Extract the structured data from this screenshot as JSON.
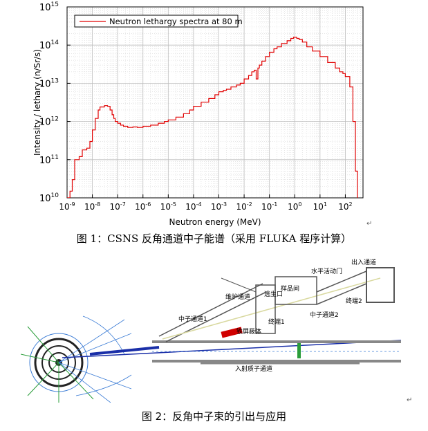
{
  "figure1": {
    "caption": "图 1：CSNS 反角通道中子能谱（采用 FLUKA 程序计算）",
    "chart_data": {
      "type": "line",
      "title": "",
      "xlabel": "Neutron energy (MeV)",
      "ylabel": "Intensity / lethary (n/Sr/s)",
      "xscale": "log",
      "yscale": "log",
      "xlim": [
        1e-09,
        500
      ],
      "ylim": [
        10000000000.0,
        1000000000000000.0
      ],
      "grid": true,
      "legend_position": "top-left",
      "x_ticks": [
        "10-9",
        "10-8",
        "10-7",
        "10-6",
        "10-5",
        "10-4",
        "10-3",
        "10-2",
        "10-1",
        "100",
        "101",
        "102"
      ],
      "y_ticks": [
        "1010",
        "1011",
        "1012",
        "1013",
        "1014",
        "1015"
      ],
      "series": [
        {
          "name": "Neutron lethargy spectra at 80 m",
          "color": "#e00000",
          "x": [
            1e-09,
            1.3e-09,
            1.6e-09,
            2e-09,
            3e-09,
            4e-09,
            6e-09,
            8e-09,
            1e-08,
            1.3e-08,
            1.7e-08,
            2e-08,
            3e-08,
            4e-08,
            5e-08,
            6e-08,
            7e-08,
            8e-08,
            1e-07,
            1.3e-07,
            1.7e-07,
            2.5e-07,
            4e-07,
            6e-07,
            1e-06,
            2e-06,
            4e-06,
            7e-06,
            1e-05,
            2e-05,
            4e-05,
            7e-05,
            0.0001,
            0.0002,
            0.0004,
            0.0007,
            0.001,
            0.0015,
            0.002,
            0.003,
            0.005,
            0.007,
            0.01,
            0.015,
            0.02,
            0.025,
            0.03,
            0.035,
            0.04,
            0.05,
            0.07,
            0.1,
            0.15,
            0.2,
            0.3,
            0.5,
            0.7,
            0.9,
            1.2,
            1.5,
            2,
            3,
            5,
            10,
            20,
            40,
            60,
            80,
            100,
            150,
            200,
            250,
            300
          ],
          "y": [
            10000000000.0,
            15000000000.0,
            30000000000.0,
            100000000000.0,
            120000000000.0,
            180000000000.0,
            200000000000.0,
            300000000000.0,
            600000000000.0,
            1200000000000.0,
            2000000000000.0,
            2400000000000.0,
            2600000000000.0,
            2500000000000.0,
            2000000000000.0,
            1500000000000.0,
            1200000000000.0,
            1000000000000.0,
            900000000000.0,
            800000000000.0,
            750000000000.0,
            700000000000.0,
            720000000000.0,
            700000000000.0,
            750000000000.0,
            800000000000.0,
            900000000000.0,
            1000000000000.0,
            1100000000000.0,
            1300000000000.0,
            1600000000000.0,
            2000000000000.0,
            2500000000000.0,
            3200000000000.0,
            4000000000000.0,
            5000000000000.0,
            6000000000000.0,
            6500000000000.0,
            7000000000000.0,
            8000000000000.0,
            9000000000000.0,
            10000000000000.0,
            13000000000000.0,
            16000000000000.0,
            20000000000000.0,
            22000000000000.0,
            13000000000000.0,
            25000000000000.0,
            30000000000000.0,
            38000000000000.0,
            50000000000000.0,
            65000000000000.0,
            80000000000000.0,
            90000000000000.0,
            110000000000000.0,
            130000000000000.0,
            150000000000000.0,
            160000000000000.0,
            150000000000000.0,
            140000000000000.0,
            120000000000000.0,
            90000000000000.0,
            70000000000000.0,
            50000000000000.0,
            35000000000000.0,
            25000000000000.0,
            20000000000000.0,
            18000000000000.0,
            15000000000000.0,
            8000000000000.0,
            1000000000000.0,
            50000000000.0,
            10000000000.0
          ]
        }
      ]
    }
  },
  "figure2": {
    "caption": "图 2：反角中子束的引出与应用",
    "labels": {
      "outlet": "出入通道",
      "horizontal_door": "水平活动门",
      "sample_room": "样品间",
      "maintenance": "维护通道",
      "escape": "逃生口",
      "terminal2": "终端2",
      "channel1": "中子通道1",
      "channel2": "中子通道2",
      "terminal1": "终端1",
      "shield": "铁屏蔽体",
      "proton": "入射质子通道"
    }
  }
}
